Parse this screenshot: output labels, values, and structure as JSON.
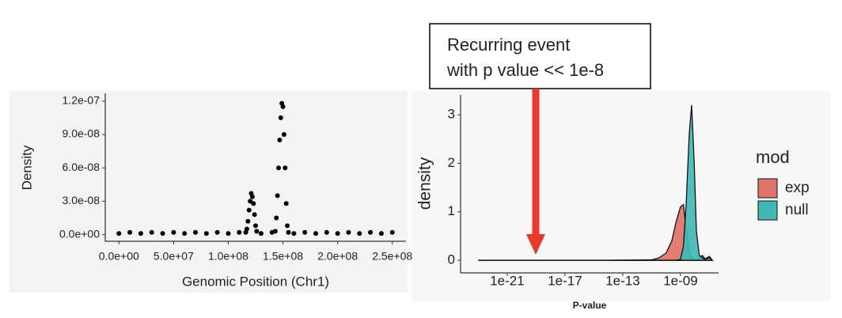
{
  "chart_data": [
    {
      "type": "scatter",
      "x_label": "Genomic Position (Chr1)",
      "y_label": "Density",
      "color": "#000000",
      "x": [
        0,
        10000000.0,
        20000000.0,
        30000000.0,
        40000000.0,
        50000000.0,
        60000000.0,
        70000000.0,
        80000000.0,
        90000000.0,
        100000000.0,
        110000000.0,
        116000000.0,
        117000000.0,
        118000000.0,
        119000000.0,
        120000000.0,
        121000000.0,
        122000000.0,
        123000000.0,
        124000000.0,
        125000000.0,
        126000000.0,
        130000000.0,
        140000000.0,
        143000000.0,
        144000000.0,
        145000000.0,
        146000000.0,
        147000000.0,
        148000000.0,
        149000000.0,
        150000000.0,
        151000000.0,
        152000000.0,
        153000000.0,
        154000000.0,
        155000000.0,
        160000000.0,
        170000000.0,
        180000000.0,
        190000000.0,
        200000000.0,
        210000000.0,
        220000000.0,
        230000000.0,
        240000000.0,
        250000000.0
      ],
      "values": [
        1e-09,
        2e-09,
        1e-09,
        2e-09,
        1e-09,
        2e-09,
        1e-09,
        2e-09,
        1e-09,
        2e-09,
        1e-09,
        2e-09,
        2e-09,
        5e-09,
        1.2e-08,
        2.2e-08,
        3e-08,
        3.7e-08,
        3.4e-08,
        2.8e-08,
        1.8e-08,
        8e-09,
        3e-09,
        1e-09,
        2e-09,
        3e-09,
        1.5e-08,
        3.5e-08,
        6e-08,
        8.5e-08,
        1.05e-07,
        1.18e-07,
        1.15e-07,
        9e-08,
        6e-08,
        2.8e-08,
        8e-09,
        2e-09,
        1e-09,
        2e-09,
        1e-09,
        2e-09,
        1e-09,
        2e-09,
        1e-09,
        2e-09,
        1e-09,
        2e-09
      ],
      "xlim": [
        -12500000.0,
        262500000.0
      ],
      "ylim": [
        -6e-09,
        1.27e-07
      ],
      "xticks": [
        {
          "value": 0,
          "label": "0.0e+00"
        },
        {
          "value": 50000000.0,
          "label": "5.0e+07"
        },
        {
          "value": 100000000.0,
          "label": "1.0e+08"
        },
        {
          "value": 150000000.0,
          "label": "1.5e+08"
        },
        {
          "value": 200000000.0,
          "label": "2.0e+08"
        },
        {
          "value": 250000000.0,
          "label": "2.5e+08"
        }
      ],
      "yticks": [
        {
          "value": 0,
          "label": "0.0e+00"
        },
        {
          "value": 3e-08,
          "label": "3.0e-08"
        },
        {
          "value": 6e-08,
          "label": "6.0e-08"
        },
        {
          "value": 9e-08,
          "label": "9.0e-08"
        },
        {
          "value": 1.2e-07,
          "label": "1.2e-07"
        }
      ]
    },
    {
      "type": "area",
      "x_label": "P-value",
      "y_label": "density",
      "x_scale": "log",
      "legend_title": "mod",
      "legend": "right",
      "x": [
        1e-23,
        1e-20,
        1e-17,
        1e-14,
        1e-11,
        3.2e-11,
        1e-10,
        2.5e-10,
        5e-10,
        1e-09,
        1.6e-09,
        2.5e-09,
        4e-09,
        5.9e-09,
        8.9e-09,
        1.26e-08,
        2e-08,
        3.2e-08,
        5e-08,
        1e-07,
        1.6e-07
      ],
      "series": [
        {
          "name": "exp",
          "color": "#E0736A",
          "values": [
            0,
            0,
            0,
            0,
            0.01,
            0.05,
            0.15,
            0.4,
            0.8,
            1.1,
            1.15,
            0.6,
            0.2,
            0.05,
            0.02,
            0,
            0.05,
            0.1,
            0.03,
            0.08,
            0
          ]
        },
        {
          "name": "null",
          "color": "#41B8B6",
          "values": [
            0,
            0,
            0,
            0,
            0,
            0,
            0,
            0,
            0,
            0.02,
            0.3,
            1.2,
            2.6,
            3.2,
            2.0,
            0.6,
            0.1,
            0.05,
            0.02,
            0.05,
            0
          ]
        }
      ],
      "xlim": [
        5.9e-25,
        4.3e-07
      ],
      "ylim": [
        -0.26,
        3.41
      ],
      "xticks": [
        {
          "value": 1e-21,
          "label": "1e-21"
        },
        {
          "value": 1e-17,
          "label": "1e-17"
        },
        {
          "value": 1e-13,
          "label": "1e-13"
        },
        {
          "value": 1e-09,
          "label": "1e-09"
        }
      ],
      "yticks": [
        0,
        1,
        2,
        3
      ]
    }
  ],
  "annotation": {
    "lines": [
      "Recurring event",
      "with p value << 1e-8"
    ]
  }
}
